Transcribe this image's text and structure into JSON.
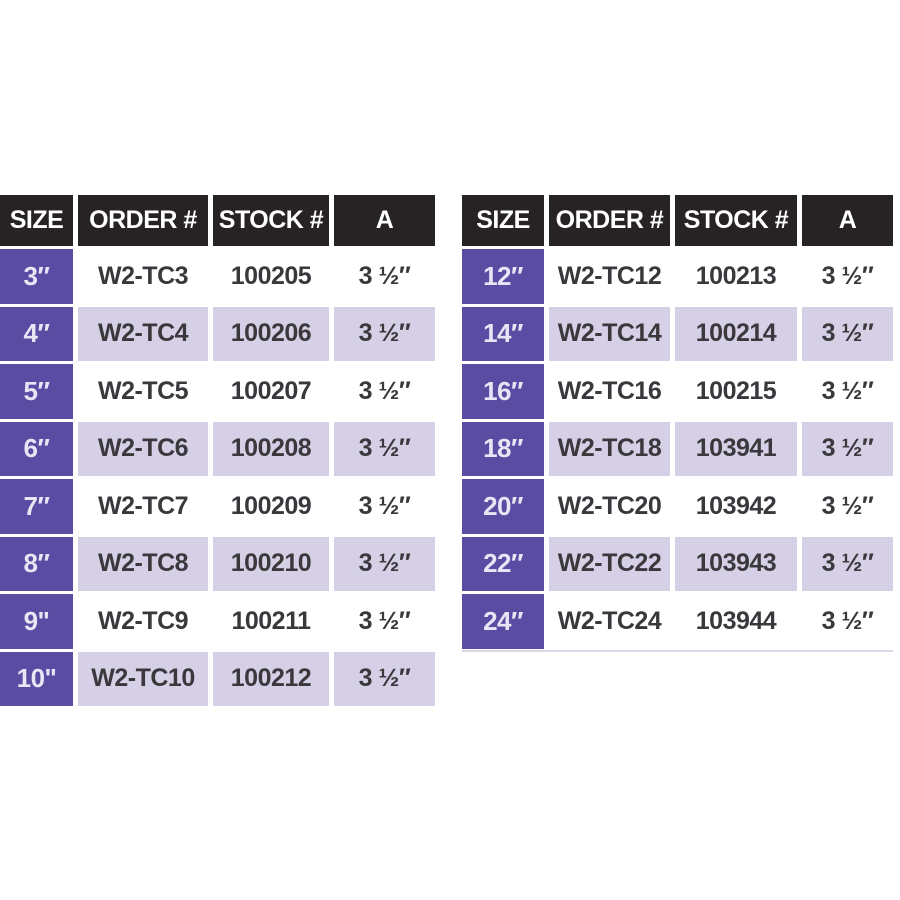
{
  "colors": {
    "page_bg": "#ffffff",
    "header_bg": "#272324",
    "header_text": "#ffffff",
    "size_bg": "#5b4ca3",
    "size_text": "#e9e5f5",
    "row_bg": "#ffffff",
    "row_alt_bg": "#d5d0e5",
    "data_text": "#3b383d"
  },
  "tables": [
    {
      "name": "left",
      "columns": [
        "SIZE",
        "ORDER #",
        "STOCK #",
        "A"
      ],
      "rows": [
        [
          "3″",
          "W2-TC3",
          "100205",
          "3 ½″"
        ],
        [
          "4″",
          "W2-TC4",
          "100206",
          "3 ½″"
        ],
        [
          "5″",
          "W2-TC5",
          "100207",
          "3 ½″"
        ],
        [
          "6″",
          "W2-TC6",
          "100208",
          "3 ½″"
        ],
        [
          "7″",
          "W2-TC7",
          "100209",
          "3 ½″"
        ],
        [
          "8″",
          "W2-TC8",
          "100210",
          "3 ½″"
        ],
        [
          "9\"",
          "W2-TC9",
          "100211",
          "3 ½″"
        ],
        [
          "10\"",
          "W2-TC10",
          "100212",
          "3 ½″"
        ]
      ]
    },
    {
      "name": "right",
      "columns": [
        "SIZE",
        "ORDER #",
        "STOCK #",
        "A"
      ],
      "rows": [
        [
          "12″",
          "W2-TC12",
          "100213",
          "3 ½″"
        ],
        [
          "14″",
          "W2-TC14",
          "100214",
          "3 ½″"
        ],
        [
          "16″",
          "W2-TC16",
          "100215",
          "3 ½″"
        ],
        [
          "18″",
          "W2-TC18",
          "103941",
          "3 ½″"
        ],
        [
          "20″",
          "W2-TC20",
          "103942",
          "3 ½″"
        ],
        [
          "22″",
          "W2-TC22",
          "103943",
          "3 ½″"
        ],
        [
          "24″",
          "W2-TC24",
          "103944",
          "3 ½″"
        ]
      ]
    }
  ],
  "chart_data": [
    {
      "type": "table",
      "title": "",
      "columns": [
        "SIZE",
        "ORDER #",
        "STOCK #",
        "A"
      ],
      "rows": [
        [
          "3″",
          "W2-TC3",
          "100205",
          "3 ½″"
        ],
        [
          "4″",
          "W2-TC4",
          "100206",
          "3 ½″"
        ],
        [
          "5″",
          "W2-TC5",
          "100207",
          "3 ½″"
        ],
        [
          "6″",
          "W2-TC6",
          "100208",
          "3 ½″"
        ],
        [
          "7″",
          "W2-TC7",
          "100209",
          "3 ½″"
        ],
        [
          "8″",
          "W2-TC8",
          "100210",
          "3 ½″"
        ],
        [
          "9\"",
          "W2-TC9",
          "100211",
          "3 ½″"
        ],
        [
          "10\"",
          "W2-TC10",
          "100212",
          "3 ½″"
        ]
      ]
    },
    {
      "type": "table",
      "title": "",
      "columns": [
        "SIZE",
        "ORDER #",
        "STOCK #",
        "A"
      ],
      "rows": [
        [
          "12″",
          "W2-TC12",
          "100213",
          "3 ½″"
        ],
        [
          "14″",
          "W2-TC14",
          "100214",
          "3 ½″"
        ],
        [
          "16″",
          "W2-TC16",
          "100215",
          "3 ½″"
        ],
        [
          "18″",
          "W2-TC18",
          "103941",
          "3 ½″"
        ],
        [
          "20″",
          "W2-TC20",
          "103942",
          "3 ½″"
        ],
        [
          "22″",
          "W2-TC22",
          "103943",
          "3 ½″"
        ],
        [
          "24″",
          "W2-TC24",
          "103944",
          "3 ½″"
        ]
      ]
    }
  ]
}
